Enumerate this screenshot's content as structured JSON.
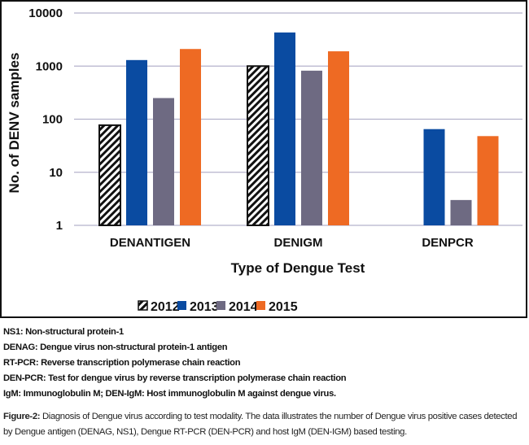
{
  "chart_data": {
    "type": "bar",
    "yscale": "log",
    "title": "",
    "xlabel": "Type of Dengue Test",
    "ylabel": "No. of DENV samples",
    "ylim": [
      1,
      10000
    ],
    "yticks": [
      "1",
      "10",
      "100",
      "1000",
      "10000"
    ],
    "grid": true,
    "legend_position": "bottom",
    "categories": [
      "DENANTIGEN",
      "DENIGM",
      "DENPCR"
    ],
    "series": [
      {
        "name": "2012",
        "pattern": "hatch",
        "color": "#111111",
        "values": [
          77,
          1000,
          null
        ]
      },
      {
        "name": "2013",
        "color": "#0a4ba1",
        "values": [
          1300,
          4300,
          65
        ]
      },
      {
        "name": "2014",
        "color": "#6e6a82",
        "values": [
          250,
          820,
          3
        ]
      },
      {
        "name": "2015",
        "color": "#ee6a23",
        "values": [
          2100,
          1900,
          48
        ]
      }
    ]
  },
  "notes": [
    "NS1: Non-structural protein-1",
    "DENAG: Dengue virus non-structural protein-1 antigen",
    "RT-PCR: Reverse transcription polymerase chain reaction",
    "DEN-PCR: Test for dengue virus by reverse transcription polymerase chain reaction",
    "IgM: Immunoglobulin M; DEN-IgM: Host immunoglobulin M against dengue virus."
  ],
  "caption": {
    "label": "Figure-2:",
    "text": " Diagnosis of Dengue virus according to test modality. The data illustrates the number of Dengue virus positive cases detected by Dengue antigen (DENAG, NS1), Dengue RT-PCR (DEN-PCR) and host IgM (DEN-IGM) based testing."
  }
}
